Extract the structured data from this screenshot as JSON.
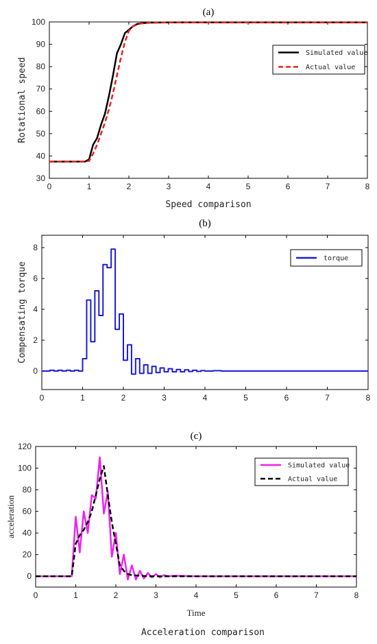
{
  "chart_data": [
    {
      "panel": "(a)",
      "type": "line",
      "title": "(a)",
      "xlabel": "Speed comparison",
      "ylabel": "Rotational speed",
      "xlim": [
        0,
        8
      ],
      "ylim": [
        30,
        100
      ],
      "xticks": [
        0,
        1,
        2,
        3,
        4,
        5,
        6,
        7,
        8
      ],
      "yticks": [
        30,
        40,
        50,
        60,
        70,
        80,
        90,
        100
      ],
      "legend_position": "top-right",
      "series": [
        {
          "name": "Simulated value",
          "color": "#000000",
          "dash": "solid",
          "x": [
            0,
            0.9,
            1.0,
            1.1,
            1.2,
            1.3,
            1.4,
            1.5,
            1.6,
            1.7,
            1.8,
            1.9,
            2.0,
            2.1,
            2.2,
            2.3,
            2.5,
            3.0,
            8.0
          ],
          "y": [
            37.5,
            37.5,
            38.5,
            45,
            48,
            54,
            59,
            67,
            76,
            86,
            90,
            95,
            96.5,
            98,
            99,
            99.4,
            99.7,
            99.8,
            99.8
          ]
        },
        {
          "name": "Actual value",
          "color": "#e8201a",
          "dash": "dashed",
          "x": [
            0,
            0.9,
            1.0,
            1.1,
            1.2,
            1.3,
            1.4,
            1.5,
            1.6,
            1.7,
            1.8,
            1.9,
            2.0,
            2.1,
            2.2,
            2.3,
            2.5,
            3.0,
            8.0
          ],
          "y": [
            37.5,
            37.5,
            37.8,
            41,
            45,
            50,
            55,
            61,
            68,
            76,
            84,
            91,
            96,
            98,
            98.8,
            99.3,
            99.6,
            99.8,
            99.8
          ]
        }
      ]
    },
    {
      "panel": "(b)",
      "type": "line",
      "title": "(b)",
      "xlabel": "",
      "ylabel": "Compensating torque",
      "xlim": [
        0,
        8
      ],
      "ylim": [
        -1.2,
        8.8
      ],
      "xticks": [
        0,
        1,
        2,
        3,
        4,
        5,
        6,
        7,
        8
      ],
      "yticks": [
        0,
        2,
        4,
        6,
        8
      ],
      "legend_position": "top-right",
      "series": [
        {
          "name": "torque",
          "color": "#1a1ad8",
          "dash": "solid",
          "step": true,
          "x": [
            0,
            0.2,
            0.3,
            0.4,
            0.5,
            0.6,
            0.7,
            0.8,
            0.9,
            1.0,
            1.1,
            1.2,
            1.3,
            1.4,
            1.5,
            1.6,
            1.7,
            1.8,
            1.9,
            2.0,
            2.1,
            2.2,
            2.3,
            2.4,
            2.5,
            2.6,
            2.7,
            2.8,
            2.9,
            3.0,
            3.1,
            3.2,
            3.3,
            3.4,
            3.5,
            3.6,
            3.7,
            3.8,
            3.9,
            4.0,
            4.2,
            4.4,
            4.6,
            8.0
          ],
          "y": [
            0,
            0.05,
            0,
            0.05,
            0,
            0.05,
            0,
            0.05,
            0,
            0.8,
            4.6,
            1.9,
            5.2,
            3.6,
            6.9,
            6.7,
            7.9,
            2.7,
            3.7,
            0.7,
            1.7,
            -0.2,
            0.8,
            -0.15,
            0.4,
            -0.15,
            0.3,
            -0.1,
            0.2,
            -0.05,
            0.15,
            -0.05,
            0.1,
            -0.05,
            0.08,
            -0.03,
            0.05,
            -0.02,
            0.03,
            0,
            0.02,
            0,
            0,
            0
          ]
        }
      ]
    },
    {
      "panel": "(c)",
      "type": "line",
      "title": "(c)",
      "xlabel": "Time",
      "ylabel": "acceleration",
      "caption": "Acceleration comparison",
      "xlim": [
        0,
        8
      ],
      "ylim": [
        -10,
        120
      ],
      "xticks": [
        0,
        1,
        2,
        3,
        4,
        5,
        6,
        7,
        8
      ],
      "yticks": [
        0,
        20,
        40,
        60,
        80,
        100,
        120
      ],
      "legend_position": "top-right",
      "series": [
        {
          "name": "Simulated value",
          "color": "#ee22ee",
          "dash": "solid",
          "x": [
            0,
            0.9,
            1.0,
            1.1,
            1.2,
            1.3,
            1.4,
            1.5,
            1.6,
            1.7,
            1.8,
            1.9,
            2.0,
            2.1,
            2.2,
            2.3,
            2.4,
            2.5,
            2.6,
            2.7,
            2.8,
            2.9,
            3.0,
            3.1,
            3.2,
            3.3,
            3.5,
            4.0,
            8.0
          ],
          "y": [
            0,
            0,
            55,
            22,
            60,
            40,
            75,
            72,
            110,
            58,
            78,
            18,
            40,
            2,
            20,
            -3,
            10,
            -3,
            5,
            -2,
            3,
            -1,
            2,
            -1,
            1,
            0,
            0.5,
            0,
            0
          ]
        },
        {
          "name": "Actual value",
          "color": "#000000",
          "dash": "dashed",
          "x": [
            0,
            0.9,
            1.0,
            1.1,
            1.2,
            1.3,
            1.4,
            1.5,
            1.6,
            1.7,
            1.8,
            1.9,
            2.0,
            2.1,
            2.2,
            2.3,
            2.4,
            2.6,
            2.8,
            3.0,
            8.0
          ],
          "y": [
            0,
            0,
            30,
            38,
            43,
            50,
            60,
            75,
            90,
            102,
            75,
            50,
            30,
            10,
            5,
            2,
            1,
            0.5,
            0,
            0,
            0
          ]
        }
      ]
    }
  ]
}
